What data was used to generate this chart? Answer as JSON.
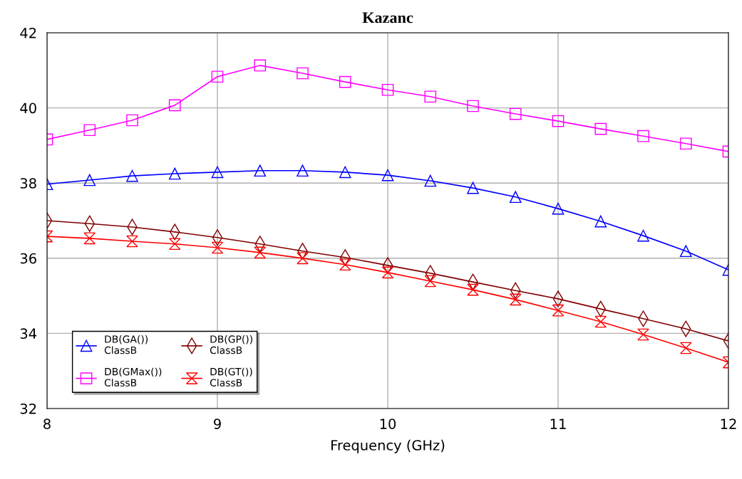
{
  "chart_data": {
    "type": "line",
    "title": "Kazanc",
    "xlabel": "Frequency (GHz)",
    "x": [
      8,
      8.25,
      8.5,
      8.75,
      9,
      9.25,
      9.5,
      9.75,
      10,
      10.25,
      10.5,
      10.75,
      11,
      11.25,
      11.5,
      11.75,
      12
    ],
    "series": [
      {
        "name": "DB(GA())\nClassB",
        "color": "#0000ff",
        "marker": "triangle",
        "values": [
          37.97,
          38.08,
          38.19,
          38.25,
          38.29,
          38.33,
          38.33,
          38.29,
          38.21,
          38.06,
          37.87,
          37.63,
          37.32,
          36.98,
          36.6,
          36.19,
          35.69
        ]
      },
      {
        "name": "DB(GMax())\nClassB",
        "color": "#ff00ff",
        "marker": "square",
        "values": [
          39.16,
          39.41,
          39.67,
          40.07,
          40.83,
          41.13,
          40.92,
          40.69,
          40.48,
          40.3,
          40.05,
          39.84,
          39.65,
          39.44,
          39.25,
          39.05,
          38.84
        ]
      },
      {
        "name": "DB(GP())\nClassB",
        "color": "#800000",
        "marker": "diamond",
        "values": [
          37.0,
          36.92,
          36.83,
          36.7,
          36.55,
          36.38,
          36.19,
          36.02,
          35.81,
          35.6,
          35.37,
          35.14,
          34.92,
          34.65,
          34.39,
          34.12,
          33.8
        ]
      },
      {
        "name": "DB(GT())\nClassB",
        "color": "#ff0000",
        "marker": "cross",
        "values": [
          36.58,
          36.53,
          36.45,
          36.38,
          36.28,
          36.15,
          36.0,
          35.83,
          35.62,
          35.39,
          35.16,
          34.9,
          34.61,
          34.31,
          33.97,
          33.61,
          33.23
        ]
      }
    ],
    "xlim": [
      8,
      12
    ],
    "xticks": [
      8,
      9,
      10,
      11,
      12
    ],
    "ylim": [
      32,
      42
    ],
    "yticks": [
      32,
      34,
      36,
      38,
      40,
      42
    ],
    "grid": true,
    "legend": "bottom left",
    "line_style": "solid"
  }
}
